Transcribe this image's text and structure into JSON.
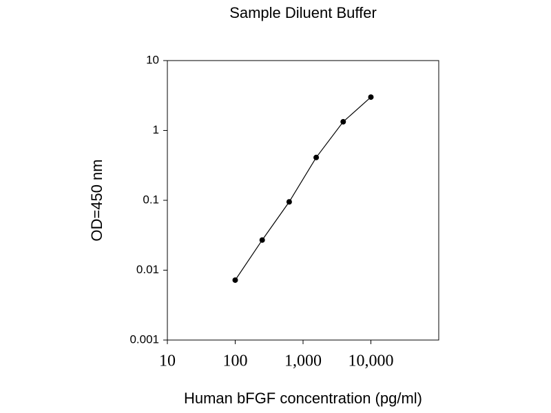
{
  "chart_data": {
    "type": "line",
    "title": "Sample Diluent Buffer",
    "x_label": "Human bFGF concentration (pg/ml)",
    "y_label": "OD=450 nm",
    "x": [
      100,
      250,
      625,
      1562.5,
      3906,
      10000
    ],
    "series": [
      {
        "color": "#000000",
        "values": [
          0.0072,
          0.027,
          0.095,
          0.41,
          1.33,
          3.0
        ]
      }
    ],
    "xlim": [
      10,
      100000
    ],
    "ylim": [
      0.001,
      10
    ],
    "xticks": [
      10,
      100,
      {
        "value": 1000,
        "label": "1,000"
      },
      {
        "value": 10000,
        "label": "10,000"
      }
    ],
    "yticks": [
      0.001,
      0.01,
      0.1,
      1,
      10
    ],
    "xscale": "log",
    "yscale": "log",
    "grid": false
  }
}
